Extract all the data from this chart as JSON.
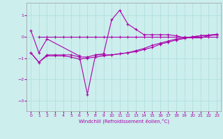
{
  "xlabel": "Windchill (Refroidissement éolien,°C)",
  "xlim": [
    -0.5,
    23.5
  ],
  "ylim": [
    -3.5,
    1.6
  ],
  "yticks": [
    -3,
    -2,
    -1,
    0,
    1
  ],
  "xticks": [
    0,
    1,
    2,
    3,
    4,
    5,
    6,
    7,
    8,
    9,
    10,
    11,
    12,
    13,
    14,
    15,
    16,
    17,
    18,
    19,
    20,
    21,
    22,
    23
  ],
  "bg_color": "#cceeed",
  "line_color": "#aa00aa",
  "grid_color": "#aaddda",
  "line1_x": [
    0,
    1,
    2,
    6,
    7,
    8,
    9,
    10,
    11,
    12,
    13,
    14,
    15,
    16,
    17,
    18,
    19,
    20,
    21,
    22,
    23
  ],
  "line1_y": [
    0.3,
    -0.75,
    -0.1,
    -0.9,
    -2.7,
    -0.85,
    -0.8,
    0.8,
    1.25,
    0.6,
    0.35,
    0.1,
    0.1,
    0.1,
    0.1,
    0.05,
    -0.05,
    -0.05,
    -0.05,
    0.05,
    0.1
  ],
  "line2_x": [
    0,
    1,
    2,
    3,
    4,
    5,
    6,
    7,
    8,
    9,
    10,
    11,
    12,
    13,
    14,
    15,
    16,
    17,
    18,
    19,
    20,
    21,
    22,
    23
  ],
  "line2_y": [
    -0.75,
    -1.2,
    -0.85,
    -0.85,
    -0.85,
    -0.85,
    -0.95,
    -0.95,
    -0.85,
    -0.85,
    -0.85,
    -0.8,
    -0.75,
    -0.7,
    -0.6,
    -0.5,
    -0.35,
    -0.25,
    -0.15,
    -0.08,
    0.0,
    0.05,
    0.07,
    0.1
  ],
  "line3_x": [
    0,
    1,
    2,
    3,
    4,
    5,
    6,
    7,
    8,
    9,
    10,
    11,
    12,
    13,
    14,
    15,
    16,
    17,
    18,
    19,
    20,
    21,
    22,
    23
  ],
  "line3_y": [
    -0.75,
    -1.2,
    -0.9,
    -0.9,
    -0.9,
    -0.95,
    -1.05,
    -1.0,
    -0.95,
    -0.9,
    -0.85,
    -0.8,
    -0.75,
    -0.65,
    -0.55,
    -0.4,
    -0.3,
    -0.2,
    -0.1,
    -0.05,
    0.0,
    0.05,
    0.08,
    0.12
  ],
  "line4_x": [
    1,
    2,
    3,
    4,
    5,
    6,
    7,
    8,
    9,
    10,
    11,
    12,
    13,
    14,
    15,
    16,
    17,
    18,
    19,
    20,
    21,
    22,
    23
  ],
  "line4_y": [
    0.0,
    0.0,
    0.0,
    0.0,
    0.0,
    0.0,
    0.0,
    0.0,
    0.0,
    0.0,
    0.0,
    0.0,
    0.0,
    0.0,
    0.0,
    0.0,
    0.0,
    0.0,
    0.0,
    0.0,
    0.0,
    0.0,
    0.0
  ]
}
